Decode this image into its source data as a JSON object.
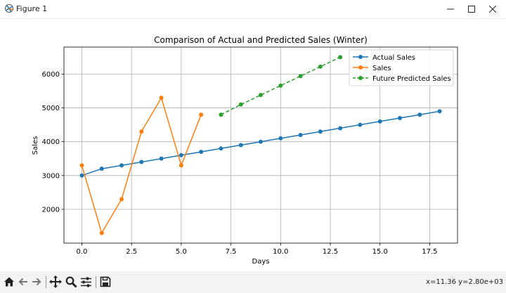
{
  "window": {
    "title": "Figure 1",
    "icon": "matplotlib-icon",
    "controls": [
      "minimize-icon",
      "maximize-icon",
      "close-icon"
    ]
  },
  "toolbar": {
    "buttons": [
      "home-icon",
      "back-arrow-icon",
      "forward-arrow-icon",
      "pan-icon",
      "zoom-icon",
      "configure-subplots-icon",
      "save-icon"
    ],
    "coordinates": "x=11.36 y=2.80e+03"
  },
  "chart_data": {
    "type": "line",
    "title": "Comparison of Actual and Predicted Sales (Winter)",
    "xlabel": "Days",
    "ylabel": "Sales",
    "xlim": [
      -0.9,
      18.9
    ],
    "ylim": [
      1000,
      6800
    ],
    "xticks": [
      0,
      2.5,
      5,
      7.5,
      10,
      12.5,
      15,
      17.5
    ],
    "xtick_labels": [
      "0.0",
      "2.5",
      "5.0",
      "7.5",
      "10.0",
      "12.5",
      "15.0",
      "17.5"
    ],
    "yticks": [
      2000,
      3000,
      4000,
      5000,
      6000
    ],
    "ytick_labels": [
      "2000",
      "3000",
      "4000",
      "5000",
      "6000"
    ],
    "grid": true,
    "legend_position": "top-right",
    "series": [
      {
        "name": "Actual Sales",
        "color": "#1f77b4",
        "linestyle": "solid",
        "marker": "circle",
        "x": [
          0,
          1,
          2,
          3,
          4,
          5,
          6,
          7,
          8,
          9,
          10,
          11,
          12,
          13,
          14,
          15,
          16,
          17,
          18
        ],
        "y": [
          3000,
          3200,
          3300,
          3400,
          3500,
          3600,
          3700,
          3800,
          3900,
          4000,
          4100,
          4200,
          4300,
          4400,
          4500,
          4600,
          4700,
          4800,
          4900
        ]
      },
      {
        "name": "Sales",
        "color": "#ff7f0e",
        "linestyle": "solid",
        "marker": "circle",
        "x": [
          0,
          1,
          2,
          3,
          4,
          5,
          6
        ],
        "y": [
          3300,
          1300,
          2300,
          4300,
          5300,
          3300,
          4800
        ]
      },
      {
        "name": "Future Predicted Sales",
        "color": "#2ca02c",
        "linestyle": "dashed",
        "marker": "circle",
        "x": [
          7,
          8,
          9,
          10,
          11,
          12,
          13
        ],
        "y": [
          4800,
          5100,
          5380,
          5660,
          5940,
          6220,
          6500
        ]
      }
    ]
  }
}
